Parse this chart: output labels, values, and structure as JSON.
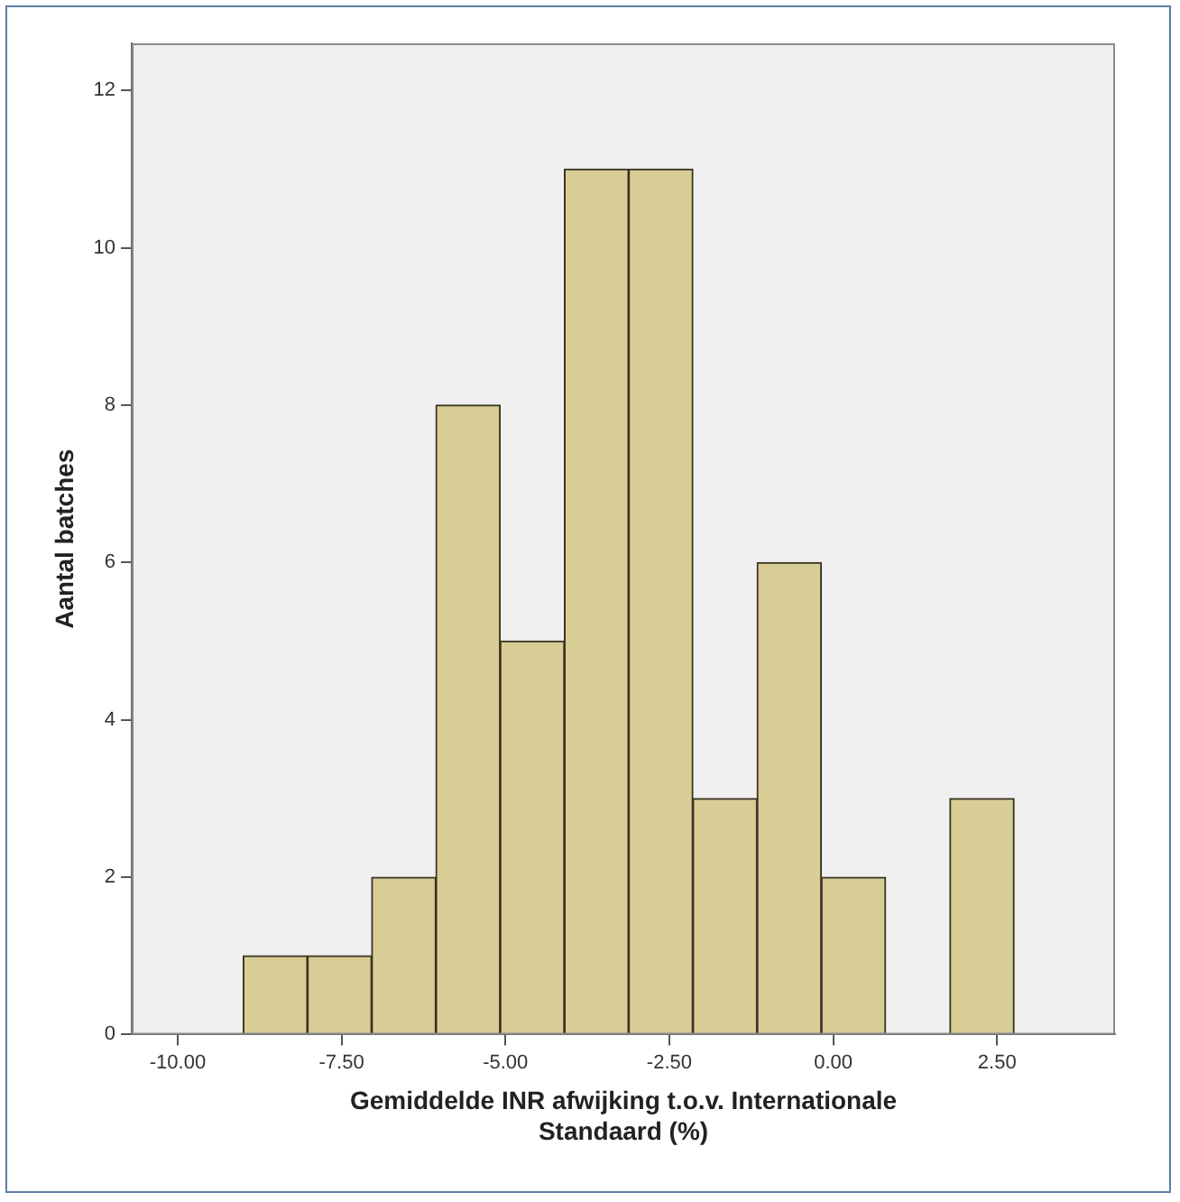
{
  "chart_data": {
    "type": "histogram",
    "xlabel": "Gemiddelde INR afwijking t.o.v. Internationale Standaard (%)",
    "ylabel": "Aantal batches",
    "bins": [
      -9,
      -8.02,
      -7.04,
      -6.06,
      -5.08,
      -4.1,
      -3.12,
      -2.14,
      -1.16,
      -0.18,
      0.8,
      1.78,
      2.76
    ],
    "values": [
      1,
      1,
      2,
      8,
      5,
      11,
      11,
      3,
      6,
      2,
      0,
      3
    ],
    "color": "#d9cd96",
    "xlim": [
      -10.7,
      4.3
    ],
    "xticks": [
      {
        "value": -10,
        "label": "-10.00"
      },
      {
        "value": -7.5,
        "label": "-7.50"
      },
      {
        "value": -5,
        "label": "-5.00"
      },
      {
        "value": -2.5,
        "label": "-2.50"
      },
      {
        "value": 0,
        "label": "0.00"
      },
      {
        "value": 2.5,
        "label": "2.50"
      }
    ],
    "ylim": [
      0,
      12.6
    ],
    "yticks": [
      0,
      2,
      4,
      6,
      8,
      10,
      12
    ],
    "grid": false,
    "legend": false
  }
}
